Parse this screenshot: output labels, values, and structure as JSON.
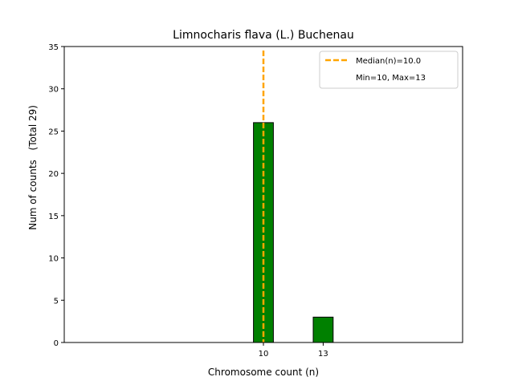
{
  "chart_data": {
    "type": "bar",
    "title": "Limnocharis flava (L.) Buchenau",
    "xlabel": "Chromosome count (n)",
    "ylabel": "Num of counts",
    "ylabel_extra": "(Total 29)",
    "xlim": [
      0,
      20
    ],
    "ylim": [
      0,
      35
    ],
    "yticks": [
      0,
      5,
      10,
      15,
      20,
      25,
      30,
      35
    ],
    "xticks": [
      10,
      13
    ],
    "bar_width": 1,
    "bars": [
      {
        "x": 10,
        "value": 26
      },
      {
        "x": 13,
        "value": 3
      }
    ],
    "bar_color": "#008000",
    "bar_edge_color": "#000000",
    "median": 10.0,
    "median_color": "#FFA500",
    "legend": {
      "position": "top-right",
      "entries": [
        "Median(n)=10.0",
        "Min=10, Max=13"
      ]
    },
    "grid": false
  }
}
